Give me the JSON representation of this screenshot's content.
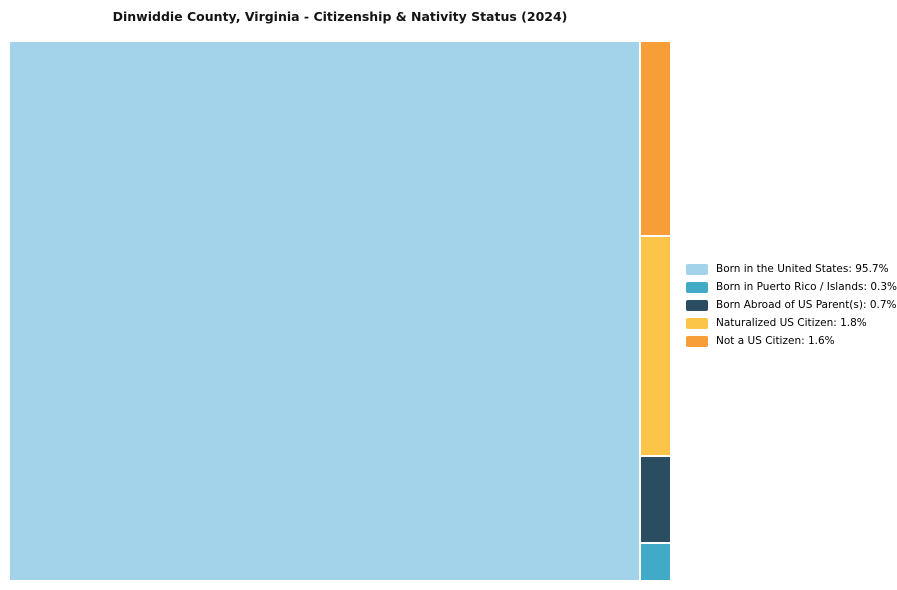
{
  "chart_data": {
    "type": "treemap",
    "title": "Dinwiddie County, Virginia - Citizenship & Nativity Status (2024)",
    "unit": "%",
    "series": [
      {
        "label": "Born in the United States",
        "value": 95.7,
        "color": "#A3D3EA"
      },
      {
        "label": "Born in Puerto Rico / Islands",
        "value": 0.3,
        "color": "#41ABC7"
      },
      {
        "label": "Born Abroad of US Parent(s)",
        "value": 0.7,
        "color": "#2B4D61"
      },
      {
        "label": "Naturalized US Citizen",
        "value": 1.8,
        "color": "#FBC54A"
      },
      {
        "label": "Not a US Citizen",
        "value": 1.6,
        "color": "#F89E38"
      }
    ],
    "legend_position": "right",
    "legend_labels": [
      "Born in the United States: 95.7%",
      "Born in Puerto Rico / Islands: 0.3%",
      "Born Abroad of US Parent(s): 0.7%",
      "Naturalized US Citizen: 1.8%",
      "Not a US Citizen: 1.6%"
    ],
    "layout": "large-rect-left-small-stacked-column-right",
    "side_column_order_top_to_bottom": [
      "Not a US Citizen",
      "Naturalized US Citizen",
      "Born Abroad of US Parent(s)",
      "Born in Puerto Rico / Islands"
    ]
  }
}
